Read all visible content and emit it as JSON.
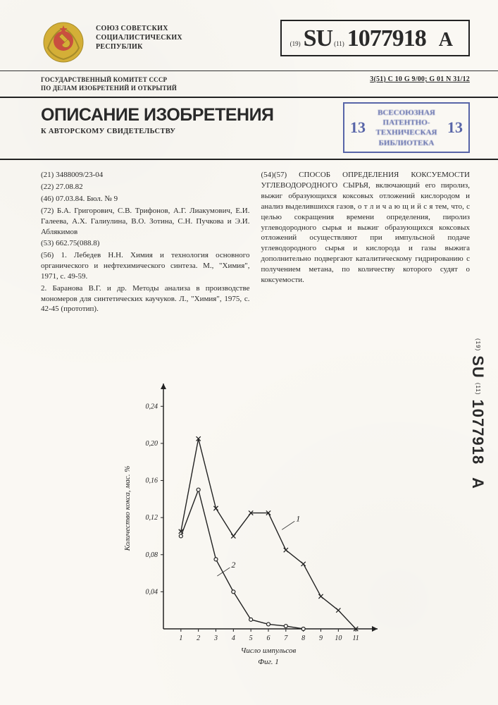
{
  "header": {
    "union_title_l1": "СОЮЗ СОВЕТСКИХ",
    "union_title_l2": "СОЦИАЛИСТИЧЕСКИХ",
    "union_title_l3": "РЕСПУБЛИК",
    "code_prefix": "(19)",
    "code_su": "SU",
    "code_sub": "(11)",
    "code_number": "1077918",
    "code_suffix": "A",
    "committee_l1": "ГОСУДАРСТВЕННЫЙ КОМИТЕТ СССР",
    "committee_l2": "ПО ДЕЛАМ ИЗОБРЕТЕНИЙ И ОТКРЫТИЙ",
    "classification": "3(51) С 10 G 9/00; G 01 N 31/12"
  },
  "title": {
    "main": "ОПИСАНИЕ ИЗОБРЕТЕНИЯ",
    "sub": "К АВТОРСКОМУ СВИДЕТЕЛЬСТВУ"
  },
  "stamp": {
    "left_num": "13",
    "right_num": "13",
    "line1": "ВСЕСОЮЗНАЯ",
    "line2": "ПАТЕНТНО-",
    "line3": "ТЕХНИЧЕСКАЯ",
    "line4": "БИБЛИОТЕКА"
  },
  "left_col": {
    "l1": "(21) 3488009/23-04",
    "l2": "(22) 27.08.82",
    "l3": "(46) 07.03.84. Бюл. № 9",
    "l4": "(72) Б.А. Григорович, С.В. Трифонов, А.Г. Лиакумович, Е.И. Галеева, А.Х. Галиулина, В.О. Зотина, С.Н. Пучкова и Э.И. Аблякимов",
    "l5": "(53) 662.75(088.8)",
    "l6": "(56) 1. Лебедев Н.Н. Химия и технология основного органического и нефтехимического синтеза. М., \"Химия\", 1971, с. 49-59.",
    "l7": "2. Баранова В.Г. и др. Методы анализа в производстве мономеров для синтетических каучуков. Л., \"Химия\", 1975, с. 42-45 (прототип)."
  },
  "right_col": {
    "abstract": "(54)(57) СПОСОБ ОПРЕДЕЛЕНИЯ КОКСУЕМОСТИ УГЛЕВОДОРОДНОГО СЫРЬЯ, включающий его пиролиз, выжиг образующихся коксовых отложений кислородом и анализ выделившихся газов, о т л и ч а ю щ и й с я  тем, что, с целью сокращения времени определения, пиролиз углеводородного сырья и выжиг образующихся коксовых отложений осуществляют при импульсной подаче углеводородного сырья и кислорода и газы выжига дополнительно подвергают каталитическому гидрированию с получением метана, по количеству которого судят о коксуемости."
  },
  "side_label": {
    "prefix": "(19)",
    "su": "SU",
    "sub": "(11)",
    "num": "1077918",
    "suffix": "A"
  },
  "chart": {
    "type": "line",
    "xlabel": "Число импульсов",
    "ylabel": "Количество кокса, мас. %",
    "fig_caption": "Фиг. 1",
    "x_ticks": [
      1,
      2,
      3,
      4,
      5,
      6,
      7,
      8,
      9,
      10,
      11
    ],
    "y_ticks": [
      0.04,
      0.08,
      0.12,
      0.16,
      0.2,
      0.24
    ],
    "y_tick_labels": [
      "0,04",
      "0,08",
      "0,12",
      "0,16",
      "0,20",
      "0,24"
    ],
    "xlim": [
      0,
      12
    ],
    "ylim": [
      0,
      0.26
    ],
    "background_color": "#faf8f3",
    "axis_color": "#222222",
    "line_color": "#222222",
    "line_width": 1.4,
    "marker_size": 5,
    "label_fontsize": 11,
    "tick_fontsize": 10,
    "series": [
      {
        "name": "1",
        "marker": "x",
        "x": [
          1,
          2,
          3,
          4,
          5,
          6,
          7,
          8,
          9,
          10,
          11
        ],
        "y": [
          0.105,
          0.205,
          0.13,
          0.1,
          0.125,
          0.125,
          0.085,
          0.07,
          0.035,
          0.02,
          0.0
        ],
        "annotation_x": 7.5,
        "annotation_y": 0.11
      },
      {
        "name": "2",
        "marker": "o",
        "x": [
          1,
          2,
          3,
          4,
          5,
          6,
          7,
          8
        ],
        "y": [
          0.1,
          0.15,
          0.075,
          0.04,
          0.01,
          0.005,
          0.003,
          0.0
        ],
        "annotation_x": 3.8,
        "annotation_y": 0.06
      }
    ]
  }
}
